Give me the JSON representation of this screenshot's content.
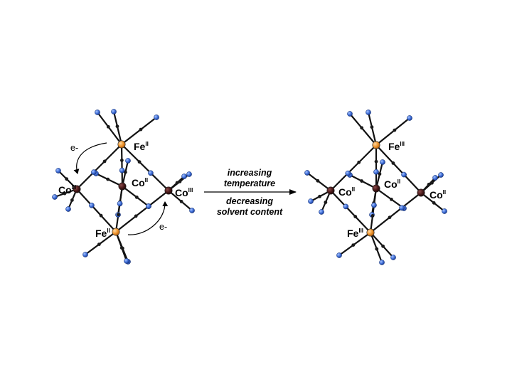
{
  "left_cluster": {
    "fe_top": {
      "element": "Fe",
      "oxidation": "II"
    },
    "fe_bottom": {
      "element": "Fe",
      "oxidation": "II"
    },
    "co_left": {
      "element": "Co",
      "oxidation": "III"
    },
    "co_center": {
      "element": "Co",
      "oxidation": "II"
    },
    "co_right": {
      "element": "Co",
      "oxidation": "III"
    },
    "electron_label_1": "e-",
    "electron_label_2": "e-"
  },
  "right_cluster": {
    "fe_top": {
      "element": "Fe",
      "oxidation": "III"
    },
    "fe_bottom": {
      "element": "Fe",
      "oxidation": "III"
    },
    "co_left": {
      "element": "Co",
      "oxidation": "II"
    },
    "co_center": {
      "element": "Co",
      "oxidation": "II"
    },
    "co_right": {
      "element": "Co",
      "oxidation": "II"
    }
  },
  "arrow": {
    "above_line1": "increasing",
    "above_line2": "temperature",
    "below_line1": "decreasing",
    "below_line2": "solvent content"
  },
  "colors": {
    "iron": "#f0962e",
    "cobalt": "#4a1a1a",
    "nitrogen": "#3f6fd8",
    "bond": "#111111"
  }
}
